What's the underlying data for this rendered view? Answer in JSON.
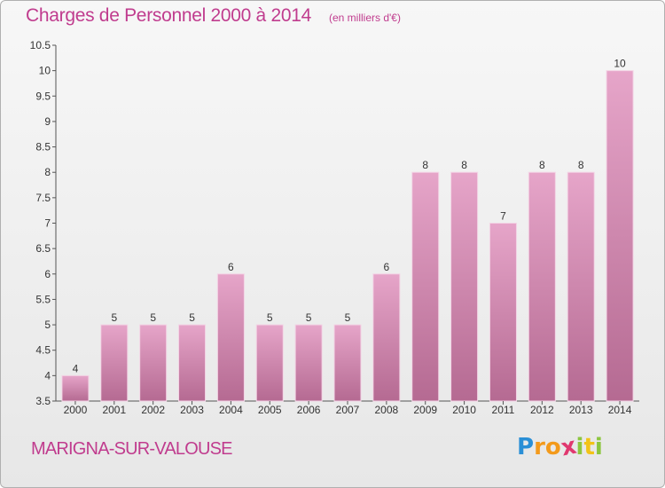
{
  "chart_data": {
    "type": "bar",
    "title": "Charges de Personnel 2000 à 2014",
    "subtitle": "(en milliers d'€)",
    "categories": [
      "2000",
      "2001",
      "2002",
      "2003",
      "2004",
      "2005",
      "2006",
      "2007",
      "2008",
      "2009",
      "2010",
      "2011",
      "2012",
      "2013",
      "2014"
    ],
    "values": [
      4,
      5,
      5,
      5,
      6,
      5,
      5,
      5,
      6,
      8,
      8,
      7,
      8,
      8,
      10
    ],
    "ylim": [
      3.5,
      10.5
    ],
    "yticks": [
      "3.5",
      "4",
      "4.5",
      "5",
      "5.5",
      "6",
      "6.5",
      "7",
      "7.5",
      "8",
      "8.5",
      "9",
      "9.5",
      "10",
      "10.5"
    ],
    "xlabel": "",
    "ylabel": "",
    "grid": false,
    "bar_color": "#d47ba8"
  },
  "commune": "MARIGNA-SUR-VALOUSE",
  "logo": {
    "letters": [
      "P",
      "r",
      "o",
      "x",
      "i",
      "t",
      "i"
    ],
    "colors": [
      "#2a8fd6",
      "#f39a1b",
      "#f39a1b",
      "#e0386f",
      "#8cc63f",
      "#f2c317",
      "#8cc63f"
    ]
  },
  "colors": {
    "accent": "#c03c8e",
    "bar": "#d47ba8"
  }
}
